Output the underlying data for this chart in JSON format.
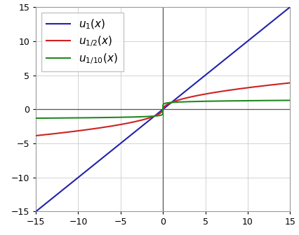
{
  "xlim": [
    -15,
    15
  ],
  "ylim": [
    -15,
    15
  ],
  "xticks": [
    -15,
    -10,
    -5,
    0,
    5,
    10,
    15
  ],
  "yticks": [
    -15,
    -10,
    -5,
    0,
    5,
    10,
    15
  ],
  "lines": [
    {
      "alpha_val": 1.0,
      "color": "#2222aa",
      "label": "$u_1(x)$",
      "linewidth": 1.5
    },
    {
      "alpha_val": 0.5,
      "color": "#cc2222",
      "label": "$u_{1/2}(x)$",
      "linewidth": 1.5
    },
    {
      "alpha_val": 0.1,
      "color": "#228822",
      "label": "$u_{1/10}(x)$",
      "linewidth": 1.5
    }
  ],
  "grid_color": "#cccccc",
  "axline_color": "#555555",
  "background_color": "#ffffff",
  "legend_fontsize": 11,
  "tick_fontsize": 9
}
